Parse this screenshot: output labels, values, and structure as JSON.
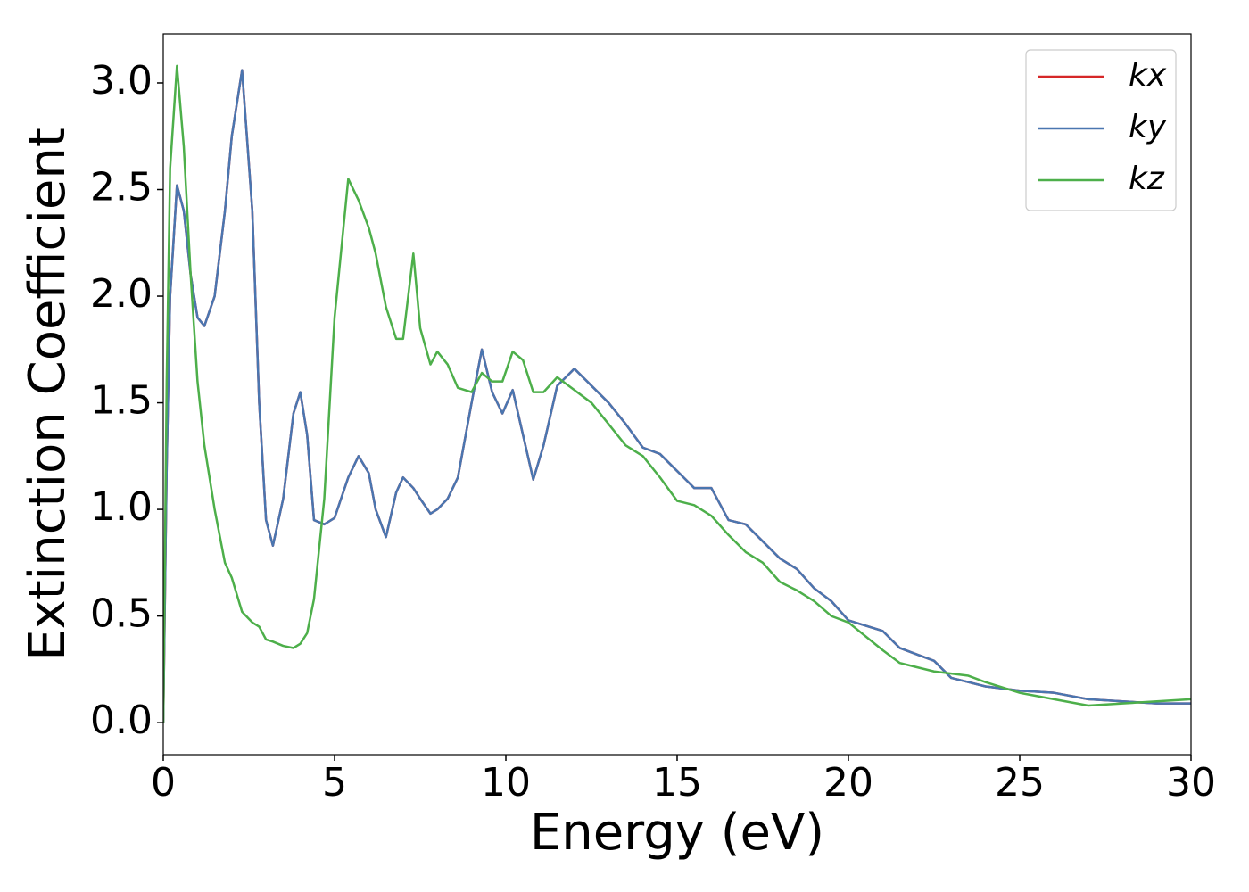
{
  "chart_data": {
    "type": "line",
    "xlabel": "Energy (eV)",
    "ylabel": "Extinction Coefficient",
    "x": [
      0,
      0.1,
      0.2,
      0.4,
      0.6,
      0.8,
      1.0,
      1.2,
      1.5,
      1.8,
      2.0,
      2.3,
      2.6,
      2.8,
      3.0,
      3.2,
      3.5,
      3.8,
      4.0,
      4.2,
      4.4,
      4.7,
      5.0,
      5.4,
      5.7,
      6.0,
      6.2,
      6.5,
      6.8,
      7.0,
      7.3,
      7.5,
      7.8,
      8.0,
      8.3,
      8.6,
      9.0,
      9.3,
      9.6,
      9.9,
      10.2,
      10.5,
      10.8,
      11.1,
      11.5,
      12.0,
      12.5,
      13.0,
      13.5,
      14.0,
      14.5,
      15,
      15.5,
      16,
      16.5,
      17,
      17.5,
      18,
      18.5,
      19,
      19.5,
      20,
      21,
      21.5,
      22,
      22.5,
      23,
      23.5,
      24,
      25,
      26,
      27,
      28,
      29,
      30
    ],
    "series": [
      {
        "name": "kx",
        "color": "#d62728",
        "values": [
          0.0,
          1.2,
          2.0,
          2.52,
          2.4,
          2.1,
          1.9,
          1.86,
          2.0,
          2.4,
          2.75,
          3.06,
          2.4,
          1.5,
          0.95,
          0.83,
          1.05,
          1.45,
          1.55,
          1.35,
          0.95,
          0.93,
          0.96,
          1.15,
          1.25,
          1.17,
          1.0,
          0.87,
          1.08,
          1.15,
          1.1,
          1.05,
          0.98,
          1.0,
          1.05,
          1.15,
          1.5,
          1.75,
          1.55,
          1.45,
          1.56,
          1.35,
          1.14,
          1.3,
          1.58,
          1.66,
          1.58,
          1.5,
          1.4,
          1.29,
          1.26,
          1.18,
          1.1,
          1.1,
          0.95,
          0.93,
          0.85,
          0.77,
          0.72,
          0.63,
          0.57,
          0.48,
          0.43,
          0.35,
          0.32,
          0.29,
          0.21,
          0.19,
          0.17,
          0.15,
          0.14,
          0.11,
          0.1,
          0.09,
          0.09
        ]
      },
      {
        "name": "ky",
        "color": "#4a76b0",
        "values": [
          0.0,
          1.2,
          2.0,
          2.52,
          2.4,
          2.1,
          1.9,
          1.86,
          2.0,
          2.4,
          2.75,
          3.06,
          2.4,
          1.5,
          0.95,
          0.83,
          1.05,
          1.45,
          1.55,
          1.35,
          0.95,
          0.93,
          0.96,
          1.15,
          1.25,
          1.17,
          1.0,
          0.87,
          1.08,
          1.15,
          1.1,
          1.05,
          0.98,
          1.0,
          1.05,
          1.15,
          1.5,
          1.75,
          1.55,
          1.45,
          1.56,
          1.35,
          1.14,
          1.3,
          1.58,
          1.66,
          1.58,
          1.5,
          1.4,
          1.29,
          1.26,
          1.18,
          1.1,
          1.1,
          0.95,
          0.93,
          0.85,
          0.77,
          0.72,
          0.63,
          0.57,
          0.48,
          0.43,
          0.35,
          0.32,
          0.29,
          0.21,
          0.19,
          0.17,
          0.15,
          0.14,
          0.11,
          0.1,
          0.09,
          0.09
        ]
      },
      {
        "name": "kz",
        "color": "#4daf4a",
        "values": [
          0.0,
          1.6,
          2.6,
          3.08,
          2.7,
          2.1,
          1.6,
          1.3,
          1.0,
          0.75,
          0.68,
          0.52,
          0.47,
          0.45,
          0.39,
          0.38,
          0.36,
          0.35,
          0.37,
          0.42,
          0.58,
          1.05,
          1.9,
          2.55,
          2.45,
          2.32,
          2.2,
          1.95,
          1.8,
          1.8,
          2.2,
          1.85,
          1.68,
          1.74,
          1.68,
          1.57,
          1.55,
          1.64,
          1.6,
          1.6,
          1.74,
          1.7,
          1.55,
          1.55,
          1.62,
          1.56,
          1.5,
          1.4,
          1.3,
          1.25,
          1.15,
          1.04,
          1.02,
          0.97,
          0.88,
          0.8,
          0.75,
          0.66,
          0.62,
          0.57,
          0.5,
          0.47,
          0.34,
          0.28,
          0.26,
          0.24,
          0.23,
          0.22,
          0.19,
          0.14,
          0.11,
          0.08,
          0.09,
          0.1,
          0.11
        ]
      }
    ],
    "xlim": [
      0,
      30
    ],
    "xticks": [
      0,
      5,
      10,
      15,
      20,
      25,
      30
    ],
    "ylim": [
      -0.15,
      3.23
    ],
    "yticks": [
      {
        "value": 0,
        "label": "0.0"
      },
      0.5,
      {
        "value": 1,
        "label": "1.0"
      },
      1.5,
      {
        "value": 2,
        "label": "2.0"
      },
      2.5,
      {
        "value": 3,
        "label": "3.0"
      }
    ],
    "legend": "upper right"
  }
}
